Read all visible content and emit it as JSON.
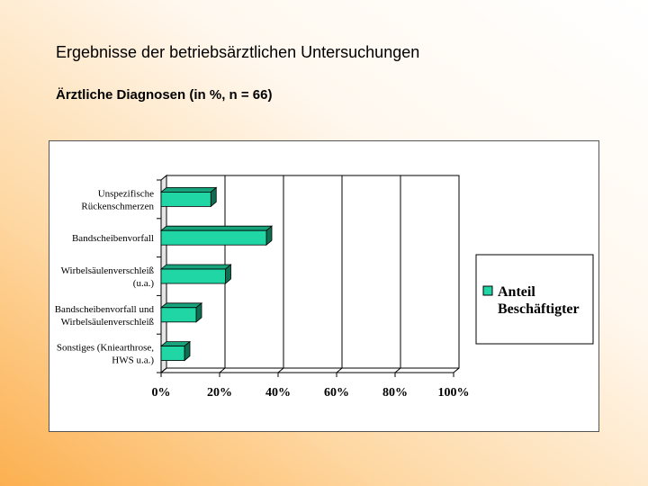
{
  "slide": {
    "title": "Ergebnisse der betriebsärztlichen Untersuchungen",
    "subtitle": "Ärztliche Diagnosen (in %, n = 66)"
  },
  "chart_data": {
    "type": "bar",
    "orientation": "horizontal",
    "categories": [
      [
        "Unspezifische",
        "Rückenschmerzen"
      ],
      [
        "Bandscheibenvorfall"
      ],
      [
        "Wirbelsäulenverschleiß",
        "(u.a.)"
      ],
      [
        "Bandscheibenvorfall und",
        "Wirbelsäulenverschleiß"
      ],
      [
        "Sonstiges (Kniearthrose,",
        "HWS u.a.)"
      ]
    ],
    "series": [
      {
        "name": "Anteil Beschäftigter",
        "legend_lines": [
          "Anteil",
          "Beschäftigter"
        ],
        "values": [
          17,
          36,
          22,
          12,
          8
        ],
        "color": "#1fd6a4"
      }
    ],
    "x_ticks": [
      "0%",
      "20%",
      "40%",
      "60%",
      "80%",
      "100%"
    ],
    "xlim": [
      0,
      100
    ],
    "grid": true,
    "legend_position": "right"
  }
}
